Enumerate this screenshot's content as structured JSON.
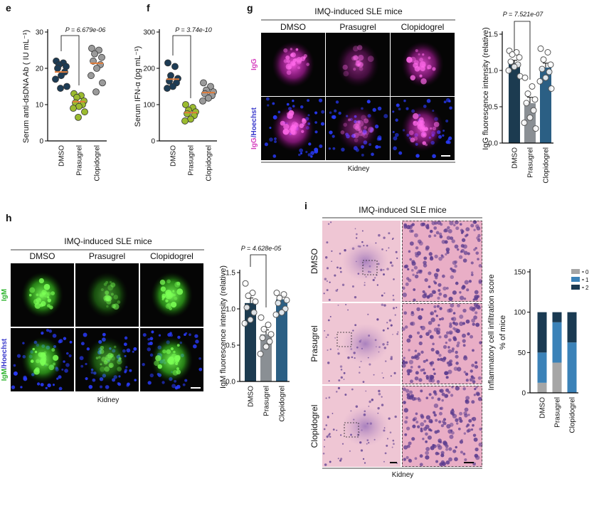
{
  "panel_labels": [
    "e",
    "f",
    "g",
    "h",
    "i"
  ],
  "image_panels": [
    {
      "title": "IMQ-induced SLE mice",
      "columns": [
        "DMSO",
        "Prasugrel",
        "Clopidogrel"
      ],
      "rows": [
        {
          "stain": "IgG"
        },
        {
          "stain": "IgG",
          "counterstain": "/Hoechst"
        }
      ],
      "footer": "Kidney"
    },
    {
      "title": "IMQ-induced SLE mice",
      "columns": [
        "DMSO",
        "Prasugrel",
        "Clopidogrel"
      ],
      "rows": [
        {
          "stain": "IgM"
        },
        {
          "stain": "IgM",
          "counterstain": "/Hoechst"
        }
      ],
      "footer": "Kidney"
    },
    {
      "title": "IMQ-induced SLE mice",
      "rows": [
        "DMSO",
        "Prasugrel",
        "Clopidogrel"
      ],
      "footer": "Kidney"
    }
  ],
  "chart_data": [
    {
      "type": "dot",
      "y_label": "Serum anti-dsDNA Ab ( IU mL⁻¹)",
      "annotation": "P = 6.679e-06",
      "categories": [
        "DMSO",
        "Prasugrel",
        "Clopidogrel"
      ],
      "colors": [
        "#1d3c55",
        "#9bbb2f",
        "#9a9a9a"
      ],
      "points": [
        [
          22,
          21.5,
          21,
          20.5,
          20,
          19,
          18,
          17,
          15,
          14.5
        ],
        [
          13,
          12.5,
          12,
          11,
          10.5,
          10,
          9.5,
          9,
          8,
          6.5
        ],
        [
          25.5,
          25,
          24,
          23,
          22,
          21,
          20,
          18,
          16,
          13.5
        ]
      ],
      "means": [
        19,
        10.8,
        21.4
      ],
      "mean_color": "#e07b39",
      "ylim": [
        0,
        30
      ],
      "yticks": [
        0,
        10,
        20,
        30
      ]
    },
    {
      "type": "dot",
      "y_label": "Serum IFN-α (pg mL⁻¹)",
      "annotation": "P = 3.74e-10",
      "categories": [
        "DMSO",
        "Prasugrel",
        "Clopidogrel"
      ],
      "colors": [
        "#1d3c55",
        "#9bbb2f",
        "#9a9a9a"
      ],
      "points": [
        [
          215,
          205,
          180,
          172,
          165,
          160,
          150,
          145
        ],
        [
          100,
          92,
          85,
          80,
          75,
          70,
          60,
          55
        ],
        [
          160,
          150,
          140,
          135,
          130,
          125,
          118,
          110
        ]
      ],
      "means": [
        170,
        78,
        133
      ],
      "mean_color": "#e07b39",
      "ylim": [
        0,
        300
      ],
      "yticks": [
        0,
        100,
        200,
        300
      ]
    },
    {
      "type": "bar",
      "y_label": "IgG fluorescence intensity (relative)",
      "annotation": "P = 7.521e-07",
      "categories": [
        "DMSO",
        "Prasugrel",
        "Clopidogrel"
      ],
      "colors": [
        "#1c3b50",
        "#8a8f94",
        "#2b5f84"
      ],
      "values": [
        1.1,
        0.55,
        1.04
      ],
      "errors": [
        0.04,
        0.08,
        0.06
      ],
      "points": [
        [
          1.27,
          1.25,
          1.22,
          1.18,
          1.12,
          1.08,
          1.05,
          1.0,
          0.92
        ],
        [
          0.9,
          0.78,
          0.68,
          0.6,
          0.55,
          0.45,
          0.35,
          0.28,
          0.2
        ],
        [
          1.3,
          1.25,
          1.15,
          1.08,
          1.02,
          0.98,
          0.9,
          0.85,
          0.75
        ]
      ],
      "ylim": [
        0,
        1.5
      ],
      "yticks": [
        {
          "value": 0,
          "label": "0.0"
        },
        0.5,
        {
          "value": 1,
          "label": "1.0"
        },
        1.5
      ]
    },
    {
      "type": "bar",
      "y_label": "IgM fluorescence intensity (relative)",
      "annotation": "P = 4.628e-05",
      "categories": [
        "DMSO",
        "Prasugrel",
        "Clopidogrel"
      ],
      "colors": [
        "#1c3b50",
        "#8a8f94",
        "#2b5f84"
      ],
      "values": [
        1.08,
        0.65,
        1.13
      ],
      "errors": [
        0.07,
        0.06,
        0.05
      ],
      "points": [
        [
          1.35,
          1.22,
          1.18,
          1.1,
          1.02,
          0.95,
          0.85,
          0.8
        ],
        [
          0.88,
          0.78,
          0.72,
          0.65,
          0.6,
          0.55,
          0.48,
          0.38
        ],
        [
          1.22,
          1.2,
          1.15,
          1.12,
          1.08,
          1.0,
          0.95,
          0.92
        ]
      ],
      "ylim": [
        0,
        1.5
      ],
      "yticks": [
        {
          "value": 0,
          "label": "0.0"
        },
        0.5,
        {
          "value": 1,
          "label": "1.0"
        },
        1.5
      ]
    },
    {
      "type": "stacked_bar",
      "score_label": "Inflammatory cell infiltration score",
      "y_label": "% of mice",
      "categories": [
        "DMSO",
        "Prasugrel",
        "Clopidogrel"
      ],
      "series": [
        {
          "name": "0",
          "color": "#a6a6a6",
          "values": [
            12.5,
            37.5,
            0
          ]
        },
        {
          "name": "1",
          "color": "#3b82b8",
          "values": [
            37.5,
            50,
            62.5
          ]
        },
        {
          "name": "2",
          "color": "#1a3a52",
          "values": [
            50,
            12.5,
            37.5
          ]
        }
      ],
      "ylim": [
        0,
        150
      ],
      "yticks": [
        0,
        50,
        100,
        150
      ]
    }
  ]
}
